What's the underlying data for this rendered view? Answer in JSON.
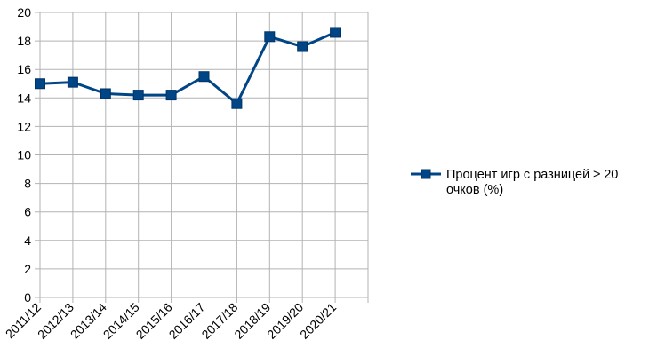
{
  "chart_data": {
    "type": "line",
    "categories": [
      "2011/12",
      "2012/13",
      "2013/14",
      "2014/15",
      "2015/16",
      "2016/17",
      "2017/18",
      "2018/19",
      "2019/20",
      "2020/21"
    ],
    "series": [
      {
        "name": "Процент игр с разницей ≥ 20 очков (%)",
        "values": [
          15.0,
          15.1,
          14.3,
          14.2,
          14.2,
          15.5,
          13.6,
          18.3,
          17.6,
          18.6
        ],
        "color": "#004586",
        "marker": "square"
      }
    ],
    "ylim": [
      0,
      20
    ],
    "yticks": [
      0,
      2,
      4,
      6,
      8,
      10,
      12,
      14,
      16,
      18,
      20
    ],
    "grid": "horizontal",
    "legend_position": "right",
    "xlabel": "",
    "ylabel": "",
    "title": ""
  }
}
